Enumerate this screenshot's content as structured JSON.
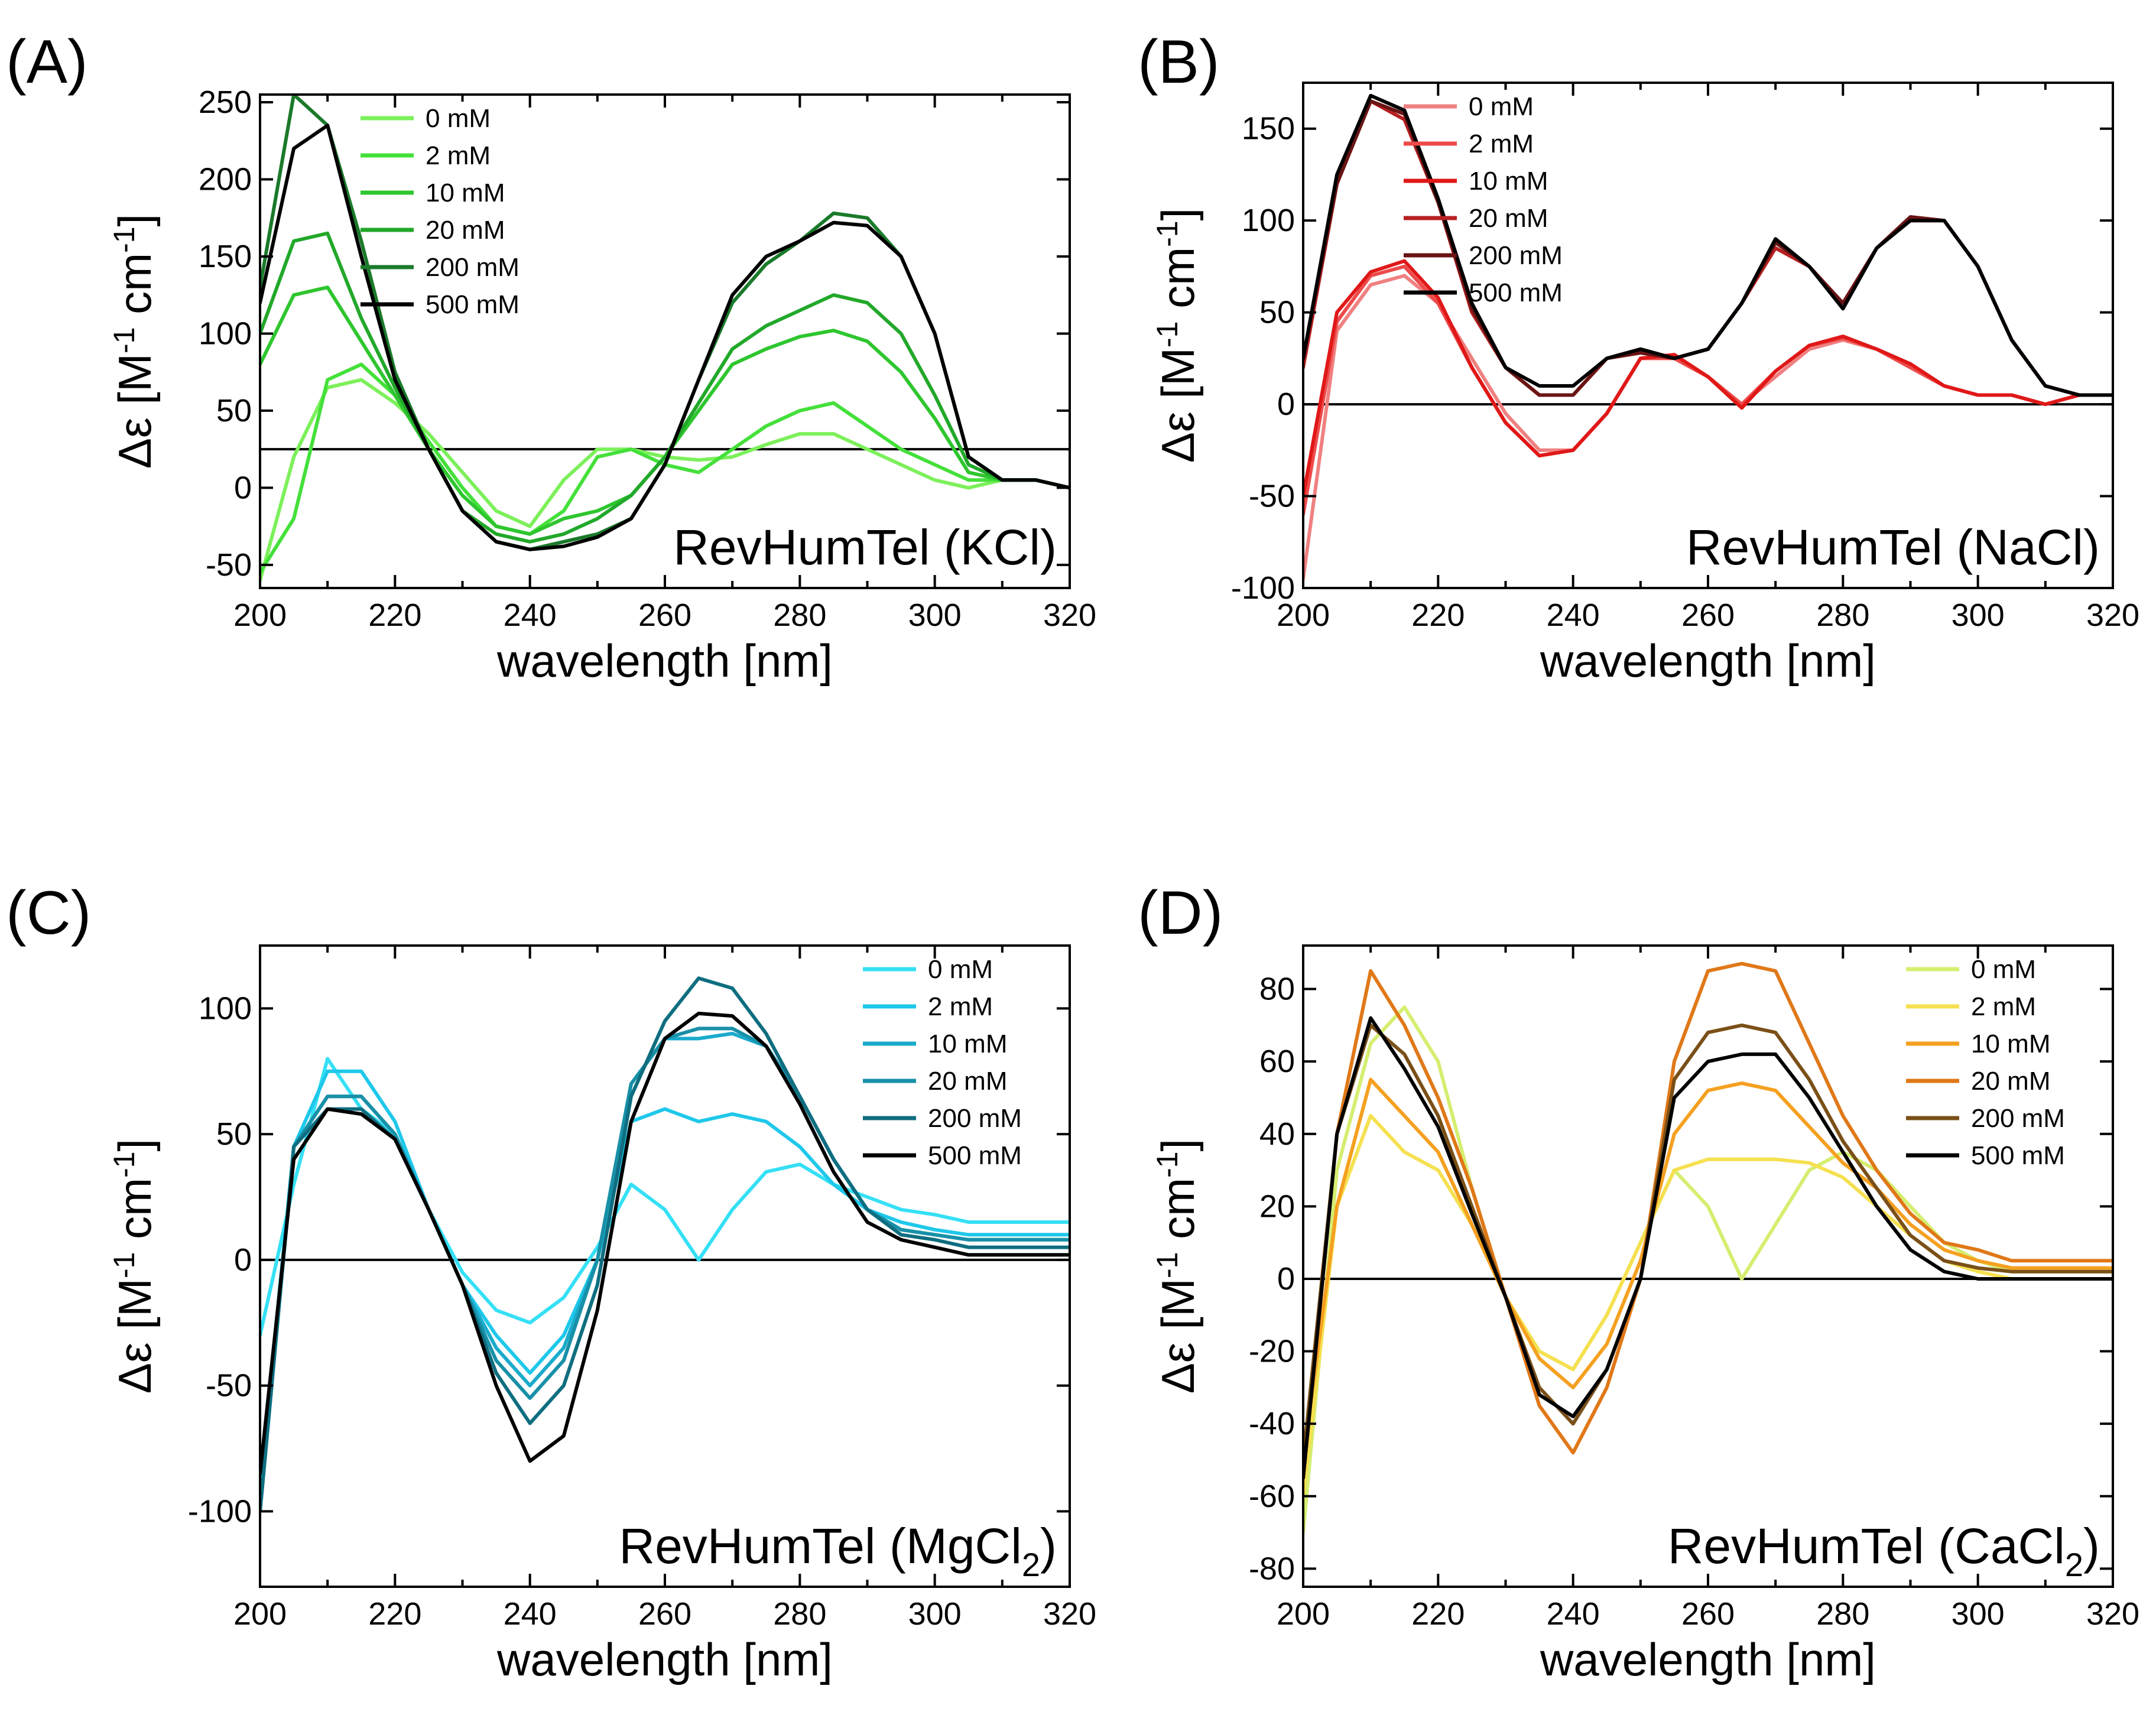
{
  "chart_data": [
    {
      "panel_label": "(A)",
      "type": "line",
      "title": "RevHumTel (KCl)",
      "xlabel": "wavelength [nm]",
      "ylabel_main": "Δε [M",
      "ylabel_sup": "-1",
      "ylabel_mid": " cm",
      "ylabel_sup2": "-1",
      "ylabel_end": "]",
      "xlim": [
        200,
        320
      ],
      "ylim": [
        -65,
        255
      ],
      "xticks": [
        "200",
        "220",
        "240",
        "260",
        "280",
        "300",
        "320"
      ],
      "yticks": [
        "-50",
        "0",
        "50",
        "100",
        "150",
        "200",
        "250"
      ],
      "baseline": 25,
      "legend_position": "top-left",
      "x": [
        200,
        205,
        210,
        215,
        220,
        225,
        230,
        235,
        240,
        245,
        250,
        255,
        260,
        265,
        270,
        275,
        280,
        285,
        290,
        295,
        300,
        305,
        310,
        315,
        320
      ],
      "series": [
        {
          "name": "0 mM",
          "color": "#7cf05a",
          "values": [
            -60,
            20,
            65,
            70,
            55,
            35,
            10,
            -15,
            -25,
            5,
            25,
            25,
            20,
            18,
            20,
            28,
            35,
            35,
            25,
            15,
            5,
            0,
            5,
            5,
            0
          ]
        },
        {
          "name": "2 mM",
          "color": "#44e03a",
          "values": [
            -55,
            -20,
            70,
            80,
            60,
            30,
            0,
            -25,
            -30,
            -15,
            20,
            25,
            15,
            10,
            25,
            40,
            50,
            55,
            40,
            25,
            15,
            5,
            5,
            5,
            0
          ]
        },
        {
          "name": "10 mM",
          "color": "#2ec62e",
          "values": [
            80,
            125,
            130,
            95,
            60,
            25,
            -5,
            -25,
            -30,
            -20,
            -15,
            -5,
            20,
            50,
            80,
            90,
            98,
            102,
            95,
            75,
            45,
            10,
            5,
            5,
            0
          ]
        },
        {
          "name": "20 mM",
          "color": "#22a82a",
          "values": [
            100,
            160,
            165,
            110,
            65,
            25,
            -15,
            -30,
            -35,
            -30,
            -20,
            -5,
            20,
            55,
            90,
            105,
            115,
            125,
            120,
            100,
            60,
            15,
            5,
            5,
            0
          ]
        },
        {
          "name": "200 mM",
          "color": "#1a7a2a",
          "values": [
            130,
            255,
            235,
            160,
            75,
            25,
            -15,
            -35,
            -40,
            -35,
            -30,
            -20,
            15,
            70,
            120,
            145,
            160,
            178,
            175,
            150,
            100,
            20,
            5,
            5,
            0
          ]
        },
        {
          "name": "500 mM",
          "color": "#000000",
          "values": [
            120,
            220,
            235,
            150,
            70,
            25,
            -15,
            -35,
            -40,
            -38,
            -32,
            -20,
            15,
            70,
            125,
            150,
            160,
            172,
            170,
            150,
            100,
            20,
            5,
            5,
            0
          ]
        }
      ]
    },
    {
      "panel_label": "(B)",
      "type": "line",
      "title": "RevHumTel (NaCl)",
      "xlabel": "wavelength [nm]",
      "ylabel_main": "Δε [M",
      "ylabel_sup": "-1",
      "ylabel_mid": " cm",
      "ylabel_sup2": "-1",
      "ylabel_end": "]",
      "xlim": [
        200,
        320
      ],
      "ylim": [
        -100,
        175
      ],
      "xticks": [
        "200",
        "220",
        "240",
        "260",
        "280",
        "300",
        "320"
      ],
      "yticks": [
        "-100",
        "-50",
        "0",
        "50",
        "100",
        "150"
      ],
      "baseline": 0,
      "legend_position": "top-left",
      "x": [
        200,
        205,
        210,
        215,
        220,
        225,
        230,
        235,
        240,
        245,
        250,
        255,
        260,
        265,
        270,
        275,
        280,
        285,
        290,
        295,
        300,
        305,
        310,
        315,
        320
      ],
      "series": [
        {
          "name": "0 mM",
          "color": "#f08080",
          "values": [
            -95,
            40,
            65,
            70,
            55,
            25,
            -5,
            -25,
            -25,
            -5,
            25,
            25,
            15,
            0,
            15,
            30,
            35,
            30,
            20,
            10,
            5,
            5,
            0,
            5,
            5
          ]
        },
        {
          "name": "2 mM",
          "color": "#ee4a4a",
          "values": [
            -60,
            45,
            70,
            75,
            55,
            20,
            -10,
            -28,
            -25,
            -5,
            25,
            25,
            15,
            0,
            18,
            32,
            36,
            30,
            20,
            10,
            5,
            5,
            0,
            5,
            5
          ]
        },
        {
          "name": "10 mM",
          "color": "#e01818",
          "values": [
            -50,
            50,
            72,
            78,
            58,
            20,
            -10,
            -28,
            -25,
            -5,
            25,
            27,
            15,
            -2,
            18,
            32,
            37,
            30,
            22,
            10,
            5,
            5,
            0,
            5,
            5
          ]
        },
        {
          "name": "20 mM",
          "color": "#b82020",
          "values": [
            20,
            120,
            165,
            155,
            110,
            50,
            20,
            5,
            5,
            25,
            30,
            25,
            30,
            55,
            85,
            75,
            55,
            85,
            100,
            100,
            75,
            35,
            10,
            5,
            5
          ]
        },
        {
          "name": "200 mM",
          "color": "#6a1414",
          "values": [
            25,
            120,
            165,
            158,
            110,
            52,
            20,
            5,
            5,
            25,
            28,
            25,
            30,
            55,
            88,
            75,
            55,
            85,
            102,
            100,
            75,
            35,
            10,
            5,
            5
          ]
        },
        {
          "name": "500 mM",
          "color": "#000000",
          "values": [
            25,
            125,
            168,
            160,
            112,
            55,
            20,
            10,
            10,
            25,
            30,
            25,
            30,
            55,
            90,
            75,
            52,
            85,
            100,
            100,
            75,
            35,
            10,
            5,
            5
          ]
        }
      ]
    },
    {
      "panel_label": "(C)",
      "type": "line",
      "title_main": "RevHumTel (MgCl",
      "title_sub": "2",
      "title_end": ")",
      "xlabel": "wavelength [nm]",
      "ylabel_main": "Δε [M",
      "ylabel_sup": "-1",
      "ylabel_mid": " cm",
      "ylabel_sup2": "-1",
      "ylabel_end": "]",
      "xlim": [
        200,
        320
      ],
      "ylim": [
        -130,
        125
      ],
      "xticks": [
        "200",
        "220",
        "240",
        "260",
        "280",
        "300",
        "320"
      ],
      "yticks": [
        "-100",
        "-50",
        "0",
        "50",
        "100"
      ],
      "baseline": 0,
      "legend_position": "top-right",
      "x": [
        200,
        205,
        210,
        215,
        220,
        225,
        230,
        235,
        240,
        245,
        250,
        255,
        260,
        265,
        270,
        275,
        280,
        285,
        290,
        295,
        300,
        305,
        310,
        315,
        320
      ],
      "series": [
        {
          "name": "0 mM",
          "color": "#35e0f5",
          "values": [
            -30,
            30,
            80,
            60,
            50,
            20,
            -5,
            -20,
            -25,
            -15,
            5,
            30,
            20,
            0,
            20,
            35,
            38,
            30,
            25,
            20,
            18,
            15,
            15,
            15,
            15
          ]
        },
        {
          "name": "2 mM",
          "color": "#1ec8ea",
          "values": [
            -90,
            45,
            75,
            75,
            55,
            20,
            -10,
            -30,
            -45,
            -30,
            0,
            55,
            60,
            55,
            58,
            55,
            45,
            30,
            20,
            15,
            12,
            10,
            10,
            10,
            10
          ]
        },
        {
          "name": "10 mM",
          "color": "#1aabcc",
          "values": [
            -100,
            45,
            65,
            65,
            50,
            20,
            -10,
            -35,
            -50,
            -35,
            0,
            70,
            88,
            88,
            90,
            85,
            65,
            40,
            20,
            12,
            10,
            8,
            8,
            8,
            8
          ]
        },
        {
          "name": "20 mM",
          "color": "#1890a8",
          "values": [
            -100,
            45,
            65,
            65,
            50,
            20,
            -10,
            -40,
            -55,
            -40,
            0,
            70,
            88,
            92,
            92,
            85,
            65,
            40,
            20,
            12,
            10,
            8,
            8,
            8,
            8
          ]
        },
        {
          "name": "200 mM",
          "color": "#0f6e80",
          "values": [
            -100,
            45,
            60,
            60,
            48,
            20,
            -10,
            -45,
            -65,
            -50,
            -10,
            65,
            95,
            112,
            108,
            90,
            65,
            40,
            20,
            10,
            8,
            5,
            5,
            5,
            5
          ]
        },
        {
          "name": "500 mM",
          "color": "#000000",
          "values": [
            -85,
            40,
            60,
            58,
            48,
            20,
            -10,
            -50,
            -80,
            -70,
            -20,
            55,
            88,
            98,
            97,
            85,
            62,
            35,
            15,
            8,
            5,
            2,
            2,
            2,
            2
          ]
        }
      ]
    },
    {
      "panel_label": "(D)",
      "type": "line",
      "title_main": "RevHumTel (CaCl",
      "title_sub": "2",
      "title_end": ")",
      "xlabel": "wavelength [nm]",
      "ylabel_main": "Δε [M",
      "ylabel_sup": "-1",
      "ylabel_mid": " cm",
      "ylabel_sup2": "-1",
      "ylabel_end": "]",
      "xlim": [
        200,
        320
      ],
      "ylim": [
        -85,
        92
      ],
      "xticks": [
        "200",
        "220",
        "240",
        "260",
        "280",
        "300",
        "320"
      ],
      "yticks": [
        "-80",
        "-60",
        "-40",
        "-20",
        "0",
        "20",
        "40",
        "60",
        "80"
      ],
      "baseline": 0,
      "legend_position": "top-right",
      "x": [
        200,
        205,
        210,
        215,
        220,
        225,
        230,
        235,
        240,
        245,
        250,
        255,
        260,
        265,
        270,
        275,
        280,
        285,
        290,
        295,
        300,
        305,
        310,
        315,
        320
      ],
      "series": [
        {
          "name": "0 mM",
          "color": "#d5ee70",
          "values": [
            -70,
            30,
            65,
            75,
            60,
            25,
            -5,
            -20,
            -25,
            -10,
            10,
            30,
            20,
            0,
            15,
            30,
            35,
            30,
            20,
            10,
            5,
            2,
            2,
            2,
            2
          ]
        },
        {
          "name": "2 mM",
          "color": "#f5e050",
          "values": [
            -60,
            20,
            45,
            35,
            30,
            15,
            -5,
            -20,
            -25,
            -10,
            10,
            30,
            33,
            33,
            33,
            32,
            28,
            20,
            12,
            5,
            2,
            0,
            0,
            0,
            0
          ]
        },
        {
          "name": "10 mM",
          "color": "#f5a020",
          "values": [
            -50,
            20,
            55,
            45,
            35,
            15,
            -5,
            -22,
            -30,
            -18,
            5,
            40,
            52,
            54,
            52,
            42,
            32,
            25,
            15,
            8,
            5,
            3,
            3,
            3,
            3
          ]
        },
        {
          "name": "20 mM",
          "color": "#e07818",
          "values": [
            -55,
            40,
            85,
            70,
            50,
            25,
            -5,
            -35,
            -48,
            -30,
            0,
            60,
            85,
            87,
            85,
            65,
            45,
            30,
            18,
            10,
            8,
            5,
            5,
            5,
            5
          ]
        },
        {
          "name": "200 mM",
          "color": "#7a5018",
          "values": [
            -50,
            40,
            70,
            62,
            45,
            20,
            -5,
            -30,
            -40,
            -25,
            0,
            55,
            68,
            70,
            68,
            55,
            38,
            25,
            12,
            5,
            3,
            2,
            2,
            2,
            2
          ]
        },
        {
          "name": "500 mM",
          "color": "#000000",
          "values": [
            -55,
            40,
            72,
            58,
            42,
            18,
            -5,
            -32,
            -38,
            -25,
            0,
            50,
            60,
            62,
            62,
            50,
            35,
            20,
            8,
            2,
            0,
            0,
            0,
            0,
            0
          ]
        }
      ]
    }
  ]
}
